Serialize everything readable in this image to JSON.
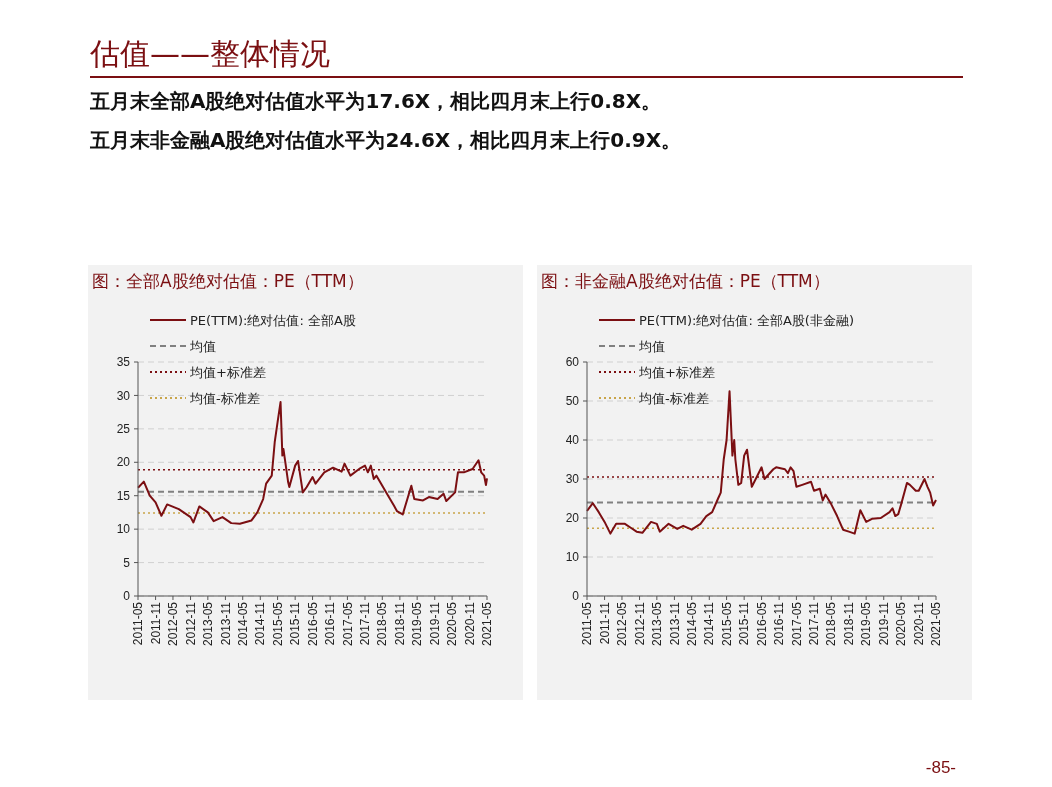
{
  "chart_data": [
    {
      "type": "line",
      "title": "图：全部A股绝对估值：PE（TTM）",
      "annotations": [
        "估值——整体情况",
        "五月末全部A股绝对估值水平为17.6X，相比四月末上行0.8X。",
        "五月末非金融A股绝对估值水平为24.6X，相比四月末上行0.9X。",
        "-85-"
      ],
      "xlim": [
        "2011-05",
        "2021-05"
      ],
      "xticks": [
        "2011-05",
        "2011-11",
        "2012-05",
        "2012-11",
        "2013-05",
        "2013-11",
        "2014-05",
        "2014-11",
        "2015-05",
        "2015-11",
        "2016-05",
        "2016-11",
        "2017-05",
        "2017-11",
        "2018-05",
        "2018-11",
        "2019-05",
        "2019-11",
        "2020-05",
        "2020-11",
        "2021-05"
      ],
      "ylim": [
        0,
        35
      ],
      "yticks": [
        0,
        5,
        10,
        15,
        20,
        25,
        30,
        35
      ],
      "grid": "y",
      "legend": "top left",
      "series": [
        {
          "name": "PE(TTM):绝对估值: 全部A股",
          "color": "#7b0f12",
          "x": [
            "2011-05",
            "2011-07",
            "2011-09",
            "2011-11",
            "2012-01",
            "2012-03",
            "2012-07",
            "2012-11",
            "2012-12",
            "2013-02",
            "2013-05",
            "2013-07",
            "2013-10",
            "2014-01",
            "2014-04",
            "2014-08",
            "2014-10",
            "2014-12",
            "2015-01",
            "2015-03",
            "2015-04",
            "2015-05",
            "2015-06",
            "2015-06-20",
            "2015-07",
            "2015-08-20",
            "2015-09",
            "2015-11",
            "2015-12",
            "2016-01-20",
            "2016-03",
            "2016-05",
            "2016-06",
            "2016-09",
            "2016-12",
            "2017-03",
            "2017-04",
            "2017-06",
            "2017-09",
            "2017-11",
            "2017-12",
            "2018-01",
            "2018-02",
            "2018-03",
            "2018-05",
            "2018-07",
            "2018-09",
            "2018-10",
            "2018-12",
            "2019-03",
            "2019-04",
            "2019-07",
            "2019-09",
            "2019-12",
            "2020-02",
            "2020-03",
            "2020-06",
            "2020-07",
            "2020-09",
            "2020-12",
            "2021-02",
            "2021-03",
            "2021-04",
            "2021-04-20",
            "2021-05"
          ],
          "values": [
            16.2,
            17.1,
            15.0,
            14.0,
            12.0,
            13.7,
            13.0,
            11.8,
            11.0,
            13.4,
            12.5,
            11.2,
            11.8,
            10.9,
            10.8,
            11.3,
            12.5,
            14.5,
            16.8,
            18.0,
            23.0,
            26.0,
            29.0,
            21.0,
            22.0,
            17.0,
            16.3,
            19.5,
            20.2,
            15.5,
            16.3,
            17.8,
            16.8,
            18.5,
            19.2,
            18.6,
            19.8,
            18.0,
            19.0,
            19.5,
            18.5,
            19.5,
            17.5,
            18.0,
            16.5,
            15.0,
            13.5,
            12.7,
            12.2,
            16.5,
            14.5,
            14.3,
            14.8,
            14.5,
            15.3,
            14.2,
            15.5,
            18.5,
            18.5,
            19.0,
            20.3,
            18.5,
            18.0,
            16.6,
            17.6
          ]
        }
      ],
      "ref_lines": [
        {
          "axis": "y",
          "value": 15.6,
          "label": "均值",
          "color": "#808080",
          "line_style": "dashed"
        },
        {
          "axis": "y",
          "value": 18.9,
          "label": "均值+标准差",
          "color": "#7b0f12",
          "line_style": "dotted"
        },
        {
          "axis": "y",
          "value": 12.4,
          "label": "均值-标准差",
          "color": "#c9a54a",
          "line_style": "dotted"
        }
      ]
    },
    {
      "type": "line",
      "title": "图：非金融A股绝对估值：PE（TTM）",
      "xlim": [
        "2011-05",
        "2021-05"
      ],
      "xticks": [
        "2011-05",
        "2011-11",
        "2012-05",
        "2012-11",
        "2013-05",
        "2013-11",
        "2014-05",
        "2014-11",
        "2015-05",
        "2015-11",
        "2016-05",
        "2016-11",
        "2017-05",
        "2017-11",
        "2018-05",
        "2018-11",
        "2019-05",
        "2019-11",
        "2020-05",
        "2020-11",
        "2021-05"
      ],
      "ylim": [
        0,
        60
      ],
      "yticks": [
        0,
        10,
        20,
        30,
        40,
        50,
        60
      ],
      "grid": "y",
      "legend": "top left",
      "series": [
        {
          "name": "PE(TTM):绝对估值: 全部A股(非金融)",
          "color": "#7b0f12",
          "x": [
            "2011-05",
            "2011-07",
            "2011-09",
            "2011-11",
            "2012-01",
            "2012-03",
            "2012-06",
            "2012-08",
            "2012-10",
            "2012-12",
            "2013-03",
            "2013-05",
            "2013-06",
            "2013-09",
            "2013-12",
            "2014-02",
            "2014-05",
            "2014-08",
            "2014-10",
            "2014-12",
            "2015-02",
            "2015-03",
            "2015-04",
            "2015-05",
            "2015-06",
            "2015-07",
            "2015-07-20",
            "2015-08",
            "2015-09",
            "2015-10",
            "2015-11",
            "2015-12",
            "2016-01-20",
            "2016-03",
            "2016-05",
            "2016-06",
            "2016-09",
            "2016-10",
            "2017-01",
            "2017-02",
            "2017-03",
            "2017-04",
            "2017-05",
            "2017-07",
            "2017-10",
            "2017-11",
            "2018-01",
            "2018-02",
            "2018-03",
            "2018-05",
            "2018-07",
            "2018-09",
            "2018-11",
            "2019-01",
            "2019-03",
            "2019-05",
            "2019-07",
            "2019-10",
            "2020-01",
            "2020-02",
            "2020-03",
            "2020-04",
            "2020-05",
            "2020-07",
            "2020-08",
            "2020-10",
            "2020-11",
            "2021-01",
            "2021-02",
            "2021-03",
            "2021-04",
            "2021-05"
          ],
          "values": [
            21.8,
            23.8,
            21.5,
            19.0,
            16.0,
            18.5,
            18.5,
            17.5,
            16.5,
            16.2,
            19.0,
            18.5,
            16.5,
            18.5,
            17.2,
            18.0,
            17.0,
            18.5,
            20.5,
            21.5,
            25.0,
            26.5,
            35.0,
            40.0,
            52.5,
            36.0,
            40.0,
            35.0,
            28.5,
            29.0,
            36.0,
            37.5,
            28.0,
            30.0,
            33.0,
            30.0,
            32.5,
            33.0,
            32.5,
            31.5,
            33.0,
            32.0,
            28.0,
            28.5,
            29.3,
            27.0,
            27.5,
            24.5,
            26.0,
            23.5,
            20.5,
            17.0,
            16.5,
            16.0,
            22.0,
            19.0,
            19.8,
            20.0,
            21.5,
            22.5,
            20.5,
            21.0,
            23.5,
            29.0,
            28.5,
            27.0,
            27.0,
            30.0,
            28.0,
            26.5,
            23.2,
            24.6
          ]
        }
      ],
      "ref_lines": [
        {
          "axis": "y",
          "value": 24.0,
          "label": "均值",
          "color": "#808080",
          "line_style": "dashed"
        },
        {
          "axis": "y",
          "value": 30.5,
          "label": "均值+标准差",
          "color": "#7b0f12",
          "line_style": "dotted"
        },
        {
          "axis": "y",
          "value": 17.4,
          "label": "均值-标准差",
          "color": "#c9a54a",
          "line_style": "dotted"
        }
      ]
    }
  ]
}
